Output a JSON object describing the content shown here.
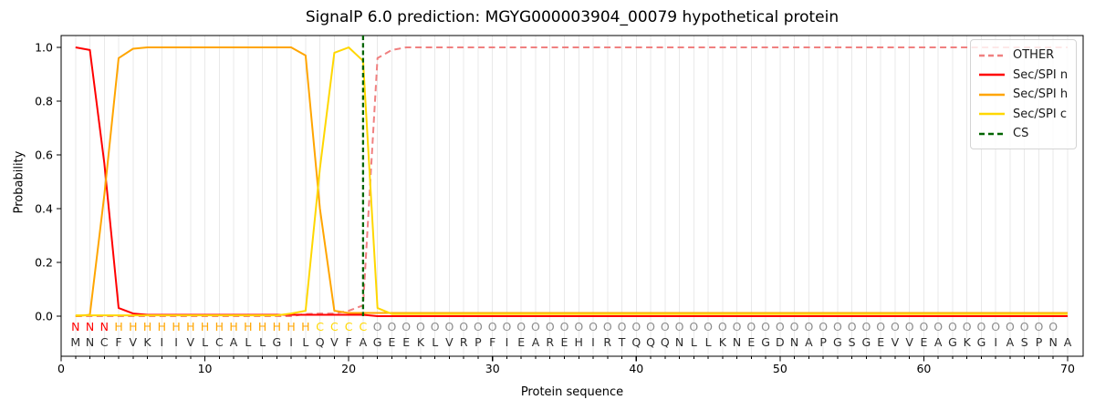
{
  "chart_data": {
    "type": "line",
    "title": "SignalP 6.0 prediction: MGYG000003904_00079 hypothetical protein",
    "xlabel": "Protein sequence",
    "ylabel": "Probability",
    "xlim": [
      0,
      71
    ],
    "ylim": [
      -0.15,
      1.04
    ],
    "xticks": [
      0,
      10,
      20,
      30,
      40,
      50,
      60,
      70
    ],
    "yticks": [
      0.0,
      0.2,
      0.4,
      0.6,
      0.8,
      1.0
    ],
    "grid": "vertical gridline at every residue position, light gray",
    "legend_position": "top-right",
    "positions": [
      1,
      2,
      3,
      4,
      5,
      6,
      7,
      8,
      9,
      10,
      11,
      12,
      13,
      14,
      15,
      16,
      17,
      18,
      19,
      20,
      21,
      22,
      23,
      24,
      25,
      26,
      27,
      28,
      29,
      30,
      31,
      32,
      33,
      34,
      35,
      36,
      37,
      38,
      39,
      40,
      41,
      42,
      43,
      44,
      45,
      46,
      47,
      48,
      49,
      50,
      51,
      52,
      53,
      54,
      55,
      56,
      57,
      58,
      59,
      60,
      61,
      62,
      63,
      64,
      65,
      66,
      67,
      68,
      69,
      70
    ],
    "series": [
      {
        "name": "OTHER",
        "color": "#f08080",
        "line_style": "dashed",
        "values": [
          0,
          0,
          0,
          0,
          0,
          0,
          0,
          0,
          0,
          0,
          0,
          0,
          0,
          0,
          0,
          0,
          0.008,
          0.01,
          0.01,
          0.02,
          0.04,
          0.96,
          0.99,
          1,
          1,
          1,
          1,
          1,
          1,
          1,
          1,
          1,
          1,
          1,
          1,
          1,
          1,
          1,
          1,
          1,
          1,
          1,
          1,
          1,
          1,
          1,
          1,
          1,
          1,
          1,
          1,
          1,
          1,
          1,
          1,
          1,
          1,
          1,
          1,
          1,
          1,
          1,
          1,
          1,
          1,
          1,
          1,
          1,
          1,
          1
        ]
      },
      {
        "name": "Sec/SPI n",
        "color": "#ff0000",
        "line_style": "solid",
        "values": [
          1,
          0.99,
          0.57,
          0.03,
          0.01,
          0.005,
          0.005,
          0.005,
          0.005,
          0.005,
          0.005,
          0.005,
          0.005,
          0.005,
          0.005,
          0.005,
          0.005,
          0.005,
          0.005,
          0.005,
          0.005,
          0,
          0,
          0,
          0,
          0,
          0,
          0,
          0,
          0,
          0,
          0,
          0,
          0,
          0,
          0,
          0,
          0,
          0,
          0,
          0,
          0,
          0,
          0,
          0,
          0,
          0,
          0,
          0,
          0,
          0,
          0,
          0,
          0,
          0,
          0,
          0,
          0,
          0,
          0,
          0,
          0,
          0,
          0,
          0,
          0,
          0,
          0,
          0,
          0
        ]
      },
      {
        "name": "Sec/SPI h",
        "color": "#ffa500",
        "line_style": "solid",
        "values": [
          0,
          0.005,
          0.45,
          0.96,
          0.995,
          1,
          1,
          1,
          1,
          1,
          1,
          1,
          1,
          1,
          1,
          1,
          0.97,
          0.4,
          0.02,
          0.012,
          0.012,
          0.012,
          0.012,
          0.012,
          0.012,
          0.012,
          0.012,
          0.012,
          0.012,
          0.012,
          0.012,
          0.012,
          0.012,
          0.012,
          0.012,
          0.012,
          0.012,
          0.012,
          0.012,
          0.012,
          0.012,
          0.012,
          0.012,
          0.012,
          0.012,
          0.012,
          0.012,
          0.012,
          0.012,
          0.012,
          0.012,
          0.012,
          0.012,
          0.012,
          0.012,
          0.012,
          0.012,
          0.012,
          0.012,
          0.012,
          0.012,
          0.012,
          0.012,
          0.012,
          0.012,
          0.012,
          0.012,
          0.012,
          0.012,
          0.012
        ]
      },
      {
        "name": "Sec/SPI c",
        "color": "#ffd700",
        "line_style": "solid",
        "values": [
          0.003,
          0.003,
          0.003,
          0.003,
          0.003,
          0.003,
          0.003,
          0.003,
          0.003,
          0.003,
          0.003,
          0.003,
          0.003,
          0.003,
          0.003,
          0.01,
          0.02,
          0.55,
          0.98,
          1,
          0.95,
          0.03,
          0.008,
          0.008,
          0.008,
          0.008,
          0.008,
          0.008,
          0.008,
          0.008,
          0.008,
          0.008,
          0.008,
          0.008,
          0.008,
          0.008,
          0.008,
          0.008,
          0.008,
          0.008,
          0.008,
          0.008,
          0.008,
          0.008,
          0.008,
          0.008,
          0.008,
          0.008,
          0.008,
          0.008,
          0.008,
          0.008,
          0.008,
          0.008,
          0.008,
          0.008,
          0.008,
          0.008,
          0.008,
          0.008,
          0.008,
          0.008,
          0.008,
          0.008,
          0.008,
          0.008,
          0.008,
          0.008,
          0.008,
          0.008
        ]
      }
    ],
    "cs_line": {
      "label": "CS",
      "position": 21,
      "color": "#006400",
      "line_style": "dashed"
    },
    "legend": {
      "items": [
        {
          "label": "OTHER",
          "color": "#f08080",
          "line_style": "dashed"
        },
        {
          "label": "Sec/SPI n",
          "color": "#ff0000",
          "line_style": "solid"
        },
        {
          "label": "Sec/SPI h",
          "color": "#ffa500",
          "line_style": "solid"
        },
        {
          "label": "Sec/SPI c",
          "color": "#ffd700",
          "line_style": "solid"
        },
        {
          "label": "CS",
          "color": "#006400",
          "line_style": "dashed"
        }
      ]
    }
  },
  "sequence_annotation": {
    "region_labels": "NNNHHHHHHHHHHHHHHCCCCOOOOOOOOOOOOOOOOOOOOOOOOOOOOOOOOOOOOOOOOOOOOOOOO",
    "sequence": "MNCFVKIIVLCALLGILQVFAGEEKLVRPFIEAREHIRTQQQNLLKNEGDNAPGSGEVVEAGKGIASPNA",
    "region_colors": {
      "N": "#ff0000",
      "H": "#ffa500",
      "C": "#ffd700",
      "O": "#8d8d8d"
    },
    "sequence_color": "#2b2b2b",
    "grid_color": "#e9e9e9",
    "axis_color": "#000000"
  }
}
